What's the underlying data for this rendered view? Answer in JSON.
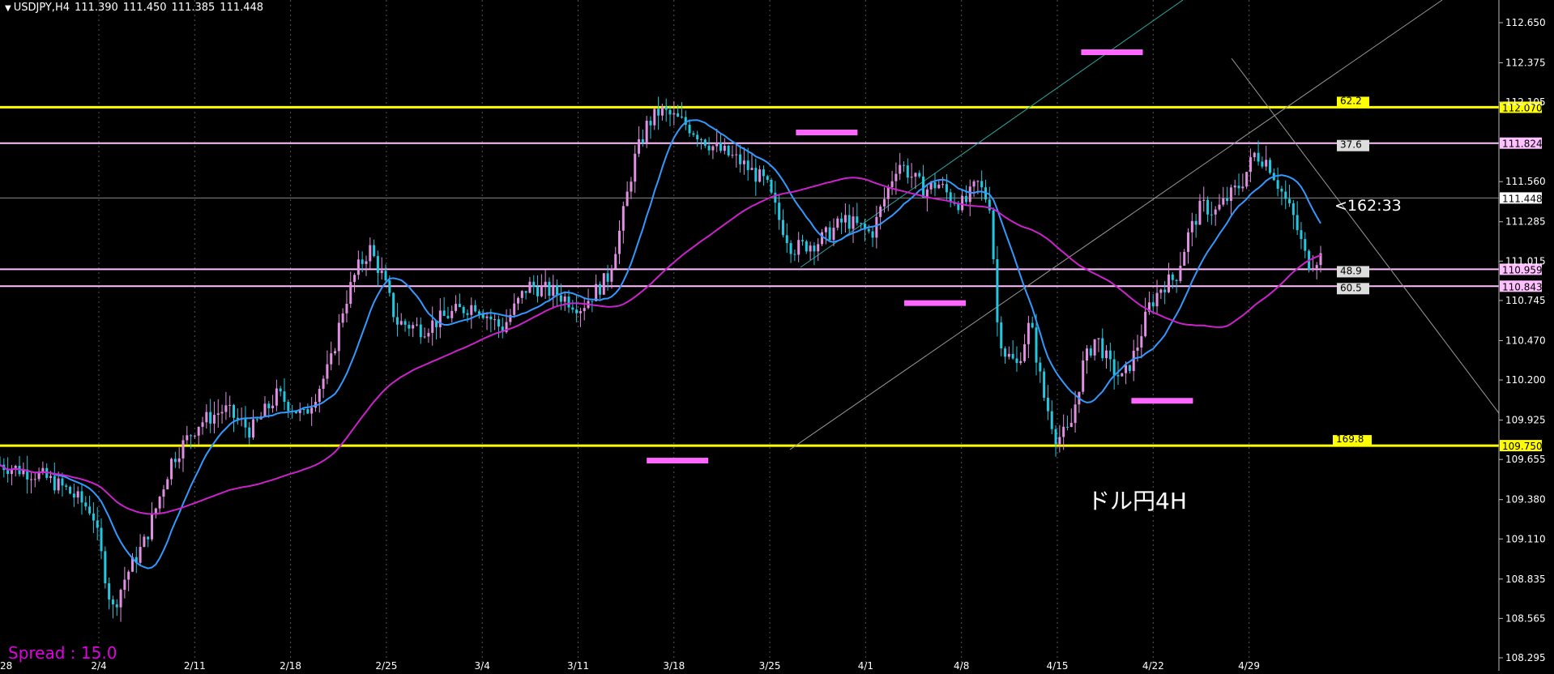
{
  "header": {
    "symbol": "USDJPY,H4",
    "open": "111.390",
    "high": "111.450",
    "low": "111.385",
    "close": "111.448"
  },
  "spread_label": "Spread : 15.0",
  "annotation_text": "ドル円4H",
  "countdown": "<162:33",
  "colors": {
    "background": "#000000",
    "bull_candle": "#e090e0",
    "bear_candle": "#22c8e0",
    "ma_fast": "#3399ff",
    "ma_slow": "#cc22cc",
    "level_yellow": "#ffff00",
    "level_pink": "#ffc0ff",
    "marker": "#ff66ff",
    "grid": "#555555",
    "axis_text": "#ffffff",
    "spread": "#e000e0"
  },
  "chart_data": {
    "type": "candlestick",
    "ylim": [
      108.15,
      112.78
    ],
    "y_ticks": [
      "112.650",
      "112.375",
      "112.105",
      "111.560",
      "111.285",
      "111.015",
      "110.745",
      "110.470",
      "110.200",
      "109.925",
      "109.655",
      "109.380",
      "109.110",
      "108.835",
      "108.565",
      "108.295"
    ],
    "x_ticks": [
      "2/4",
      "2/11",
      "2/18",
      "2/25",
      "3/4",
      "3/11",
      "3/18",
      "3/25",
      "4/1",
      "4/8",
      "4/15",
      "4/22",
      "4/29"
    ],
    "first_tick_fragment": "28",
    "horizontal_levels": [
      {
        "price": 112.07,
        "label": "112.070",
        "color": "yellow",
        "fib": "62.2"
      },
      {
        "price": 111.824,
        "label": "111.824",
        "color": "pink",
        "fib": "37.6"
      },
      {
        "price": 111.448,
        "label": "111.448",
        "color": "current",
        "fib": ""
      },
      {
        "price": 110.959,
        "label": "110.959",
        "color": "pink",
        "fib": "48.9"
      },
      {
        "price": 110.843,
        "label": "110.843",
        "color": "pink",
        "fib": "60.5"
      },
      {
        "price": 109.75,
        "label": "109.750",
        "color": "yellow",
        "fib": "169.8"
      }
    ],
    "close_path": [
      [
        0,
        109.62
      ],
      [
        0.03,
        109.55
      ],
      [
        0.05,
        109.45
      ],
      [
        0.07,
        109.3
      ],
      [
        0.085,
        108.62
      ],
      [
        0.095,
        108.85
      ],
      [
        0.11,
        109.1
      ],
      [
        0.13,
        109.65
      ],
      [
        0.15,
        109.9
      ],
      [
        0.17,
        110.0
      ],
      [
        0.19,
        109.85
      ],
      [
        0.21,
        110.1
      ],
      [
        0.23,
        109.95
      ],
      [
        0.25,
        110.3
      ],
      [
        0.26,
        110.7
      ],
      [
        0.27,
        110.95
      ],
      [
        0.28,
        111.1
      ],
      [
        0.29,
        110.9
      ],
      [
        0.3,
        110.6
      ],
      [
        0.32,
        110.55
      ],
      [
        0.34,
        110.65
      ],
      [
        0.36,
        110.72
      ],
      [
        0.38,
        110.55
      ],
      [
        0.4,
        110.85
      ],
      [
        0.42,
        110.8
      ],
      [
        0.44,
        110.7
      ],
      [
        0.46,
        110.9
      ],
      [
        0.47,
        111.25
      ],
      [
        0.48,
        111.7
      ],
      [
        0.49,
        111.95
      ],
      [
        0.5,
        112.05
      ],
      [
        0.52,
        111.95
      ],
      [
        0.54,
        111.8
      ],
      [
        0.56,
        111.7
      ],
      [
        0.58,
        111.55
      ],
      [
        0.59,
        111.3
      ],
      [
        0.6,
        111.1
      ],
      [
        0.62,
        111.15
      ],
      [
        0.64,
        111.3
      ],
      [
        0.66,
        111.2
      ],
      [
        0.67,
        111.45
      ],
      [
        0.68,
        111.7
      ],
      [
        0.69,
        111.6
      ],
      [
        0.7,
        111.5
      ],
      [
        0.71,
        111.55
      ],
      [
        0.72,
        111.45
      ],
      [
        0.73,
        111.4
      ],
      [
        0.74,
        111.55
      ],
      [
        0.75,
        111.4
      ],
      [
        0.755,
        110.6
      ],
      [
        0.76,
        110.4
      ],
      [
        0.77,
        110.3
      ],
      [
        0.78,
        110.6
      ],
      [
        0.79,
        110.1
      ],
      [
        0.8,
        109.8
      ],
      [
        0.81,
        109.85
      ],
      [
        0.82,
        110.3
      ],
      [
        0.83,
        110.5
      ],
      [
        0.84,
        110.3
      ],
      [
        0.85,
        110.2
      ],
      [
        0.86,
        110.4
      ],
      [
        0.87,
        110.7
      ],
      [
        0.88,
        110.85
      ],
      [
        0.89,
        110.9
      ],
      [
        0.9,
        111.2
      ],
      [
        0.91,
        111.4
      ],
      [
        0.92,
        111.35
      ],
      [
        0.93,
        111.45
      ],
      [
        0.94,
        111.55
      ],
      [
        0.95,
        111.75
      ],
      [
        0.96,
        111.7
      ],
      [
        0.97,
        111.5
      ],
      [
        0.98,
        111.3
      ],
      [
        0.99,
        111.0
      ],
      [
        1.0,
        111.05
      ]
    ],
    "drawn_markers": [
      {
        "type": "horizontal-marker",
        "price": 112.45,
        "pos": 0.842
      },
      {
        "type": "horizontal-marker",
        "price": 111.9,
        "pos": 0.626
      },
      {
        "type": "horizontal-marker",
        "price": 110.73,
        "pos": 0.708
      },
      {
        "type": "horizontal-marker",
        "price": 110.06,
        "pos": 0.88
      },
      {
        "type": "horizontal-marker",
        "price": 109.65,
        "pos": 0.513
      }
    ]
  }
}
